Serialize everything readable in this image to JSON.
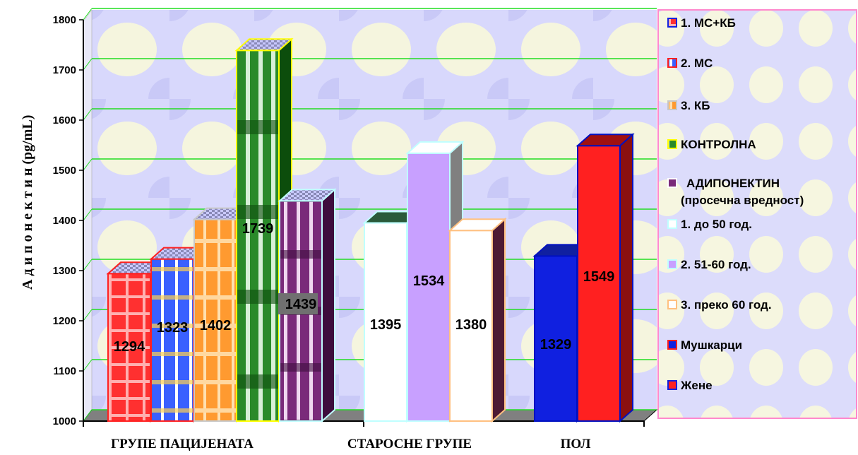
{
  "chart_data": {
    "type": "bar",
    "ylabel": "А д и п о н е к т и н   (pg/mL)",
    "ylim": [
      1000,
      1800
    ],
    "yticks": [
      1000,
      1100,
      1200,
      1300,
      1400,
      1500,
      1600,
      1700,
      1800
    ],
    "grid": true,
    "legend_position": "right",
    "groups": [
      "ГРУПЕ ПАЦИЈЕНАТА",
      "СТАРОСНЕ ГРУПЕ",
      "ПОЛ"
    ],
    "series": [
      {
        "name": "1. МС+КБ",
        "group": 0,
        "value": 1294,
        "color": "#ff2020",
        "pattern": "grid-red"
      },
      {
        "name": "2. МС",
        "group": 0,
        "value": 1323,
        "color": "#3050ff",
        "pattern": "grid-blue"
      },
      {
        "name": "3. КБ",
        "group": 0,
        "value": 1402,
        "color": "#ff9a30",
        "pattern": "grid-orange"
      },
      {
        "name": "КОНТРОЛНА",
        "group": 0,
        "value": 1739,
        "color": "#1f7a1f",
        "pattern": "grid-green"
      },
      {
        "name": "АДИПОНЕКТИН\n(просечна вредност)",
        "group": 0,
        "value": 1439,
        "color": "#7a2a7a",
        "pattern": "grid-purple"
      },
      {
        "name": "1. до 50 год.",
        "group": 1,
        "value": 1395,
        "color": "#ffffff",
        "pattern": "plain-white"
      },
      {
        "name": "2. 51-60 год.",
        "group": 1,
        "value": 1534,
        "color": "#c8a0ff",
        "pattern": "plain-lavender"
      },
      {
        "name": "3. преко 60 год.",
        "group": 1,
        "value": 1380,
        "color": "#ffffff",
        "pattern": "plain-white-peach"
      },
      {
        "name": "Мушкарци",
        "group": 2,
        "value": 1329,
        "color": "#1020e0",
        "pattern": "plain-blue"
      },
      {
        "name": "Жене",
        "group": 2,
        "value": 1549,
        "color": "#ff2020",
        "pattern": "plain-red"
      }
    ]
  }
}
